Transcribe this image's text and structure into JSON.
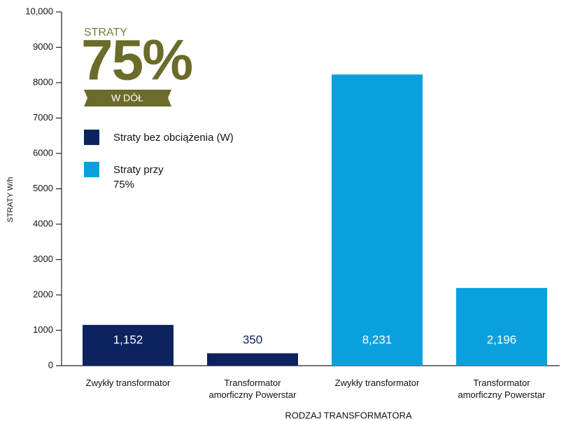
{
  "chart_data": {
    "type": "bar",
    "annotations": [
      "STRATY",
      "75%",
      "W DÓŁ"
    ],
    "y_label": "STRATY W/h",
    "x_label": "RODZAJ TRANSFORMATORA",
    "categories": [
      "Zwykły transformator",
      "Transformator amorficzny Powerstar",
      "Zwykły transformator",
      "Transformator amorficzny Powerstar"
    ],
    "series": [
      {
        "name": "Straty bez obciążenia (W)",
        "color": "#0d2360",
        "values": [
          1152,
          350,
          null,
          null
        ],
        "value_labels": [
          "1,152",
          "350",
          null,
          null
        ]
      },
      {
        "name": "Straty przy 75%",
        "color": "#0aa0dd",
        "values": [
          null,
          null,
          8231,
          2196
        ],
        "value_labels": [
          null,
          null,
          "8,231",
          "2,196"
        ]
      }
    ],
    "ylim": [
      0,
      10000
    ],
    "yticks": [
      0,
      1000,
      2000,
      3000,
      4000,
      5000,
      6000,
      7000,
      8000,
      9000,
      {
        "value": 10000,
        "label": "10,000"
      }
    ],
    "legend": "upper left",
    "grid": false
  }
}
